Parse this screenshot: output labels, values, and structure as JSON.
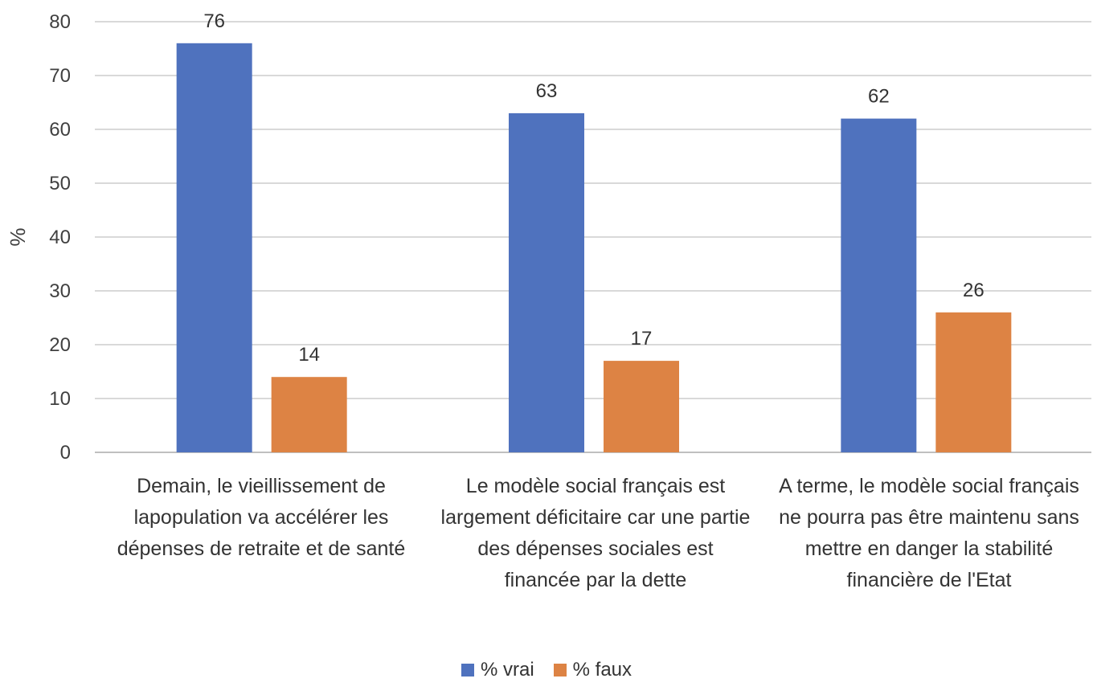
{
  "chart_data": {
    "type": "bar",
    "title": "",
    "xlabel": "",
    "ylabel": "%",
    "ylim": [
      0,
      80
    ],
    "yticks": [
      0,
      10,
      20,
      30,
      40,
      50,
      60,
      70,
      80
    ],
    "grid": true,
    "legend_position": "bottom",
    "categories": [
      "Demain, le vieillissement de lapopulation va accélérer les dépenses de retraite et de santé",
      "Le modèle social français est largement déficitaire car une partie des dépenses sociales est financée par la  dette",
      "A terme, le modèle social français ne pourra pas être maintenu sans mettre en danger la stabilité financière de l'Etat"
    ],
    "series": [
      {
        "name": "% vrai",
        "color": "#4F72BE",
        "values": [
          76,
          63,
          62
        ]
      },
      {
        "name": "% faux",
        "color": "#DD8344",
        "values": [
          14,
          17,
          26
        ]
      }
    ]
  }
}
